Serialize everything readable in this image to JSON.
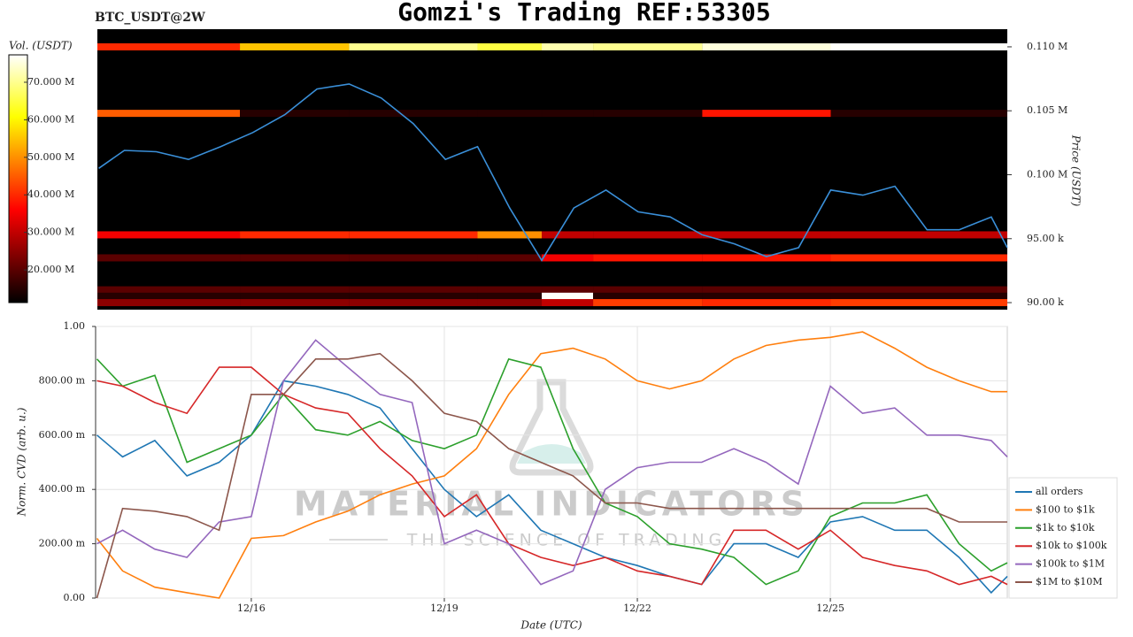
{
  "header": {
    "symbol": "BTC_USDT@2W",
    "title": "Gomzi's Trading REF:53305"
  },
  "watermark": {
    "brand": "MATERIAL INDICATORS",
    "tagline": "THE SCIENCE OF TRADING"
  },
  "chart_data": [
    {
      "type": "heatmap",
      "colorbar_label": "Vol. (USDT)",
      "y_label": "Price (USDT)",
      "xlim": [
        13.58,
        27.75
      ],
      "ylim": [
        89450,
        111380
      ],
      "yticks": [
        {
          "value": 90000,
          "label": "90.00 k"
        },
        {
          "value": 95000,
          "label": "95.00 k"
        },
        {
          "value": 100000,
          "label": "0.100 M"
        },
        {
          "value": 105000,
          "label": "0.105 M"
        },
        {
          "value": 110000,
          "label": "0.110 M"
        }
      ],
      "clim": [
        11300000,
        77300000
      ],
      "cticks": [
        {
          "value": 20000000,
          "label": "20.000 M"
        },
        {
          "value": 30000000,
          "label": "30.000 M"
        },
        {
          "value": 40000000,
          "label": "40.000 M"
        },
        {
          "value": 50000000,
          "label": "50.000 M"
        },
        {
          "value": 60000000,
          "label": "60.000 M"
        },
        {
          "value": 70000000,
          "label": "70.000 M"
        }
      ],
      "cells": {
        "x_edges": [
          13.58,
          15.8,
          17.5,
          19.5,
          20.5,
          21.3,
          23,
          25,
          27.75
        ],
        "prices": [
          110000,
          104800,
          95300,
          93500,
          91000,
          90500,
          90000
        ],
        "values": [
          [
            40000000,
            55000000,
            70000000,
            65000000,
            72000000,
            70000000,
            75000000,
            77000000
          ],
          [
            45000000,
            15000000,
            15000000,
            15000000,
            15000000,
            15000000,
            38000000,
            15000000
          ],
          [
            35000000,
            40000000,
            40000000,
            50000000,
            30000000,
            30000000,
            30000000,
            30000000
          ],
          [
            20000000,
            20000000,
            20000000,
            20000000,
            35000000,
            38000000,
            38000000,
            40000000
          ],
          [
            20000000,
            20000000,
            20000000,
            20000000,
            20000000,
            20000000,
            20000000,
            20000000
          ],
          [
            15000000,
            15000000,
            15000000,
            15000000,
            77000000,
            15000000,
            15000000,
            15000000
          ],
          [
            25000000,
            25000000,
            25000000,
            25000000,
            30000000,
            42000000,
            40000000,
            42000000
          ]
        ]
      },
      "x": [
        13.6,
        14,
        14.5,
        15,
        15.5,
        16,
        16.5,
        17,
        17.5,
        18,
        18.5,
        19,
        19.5,
        20,
        20.5,
        21,
        21.5,
        22,
        22.5,
        23,
        23.5,
        24,
        24.5,
        25,
        25.5,
        26,
        26.5,
        27,
        27.5,
        27.75
      ],
      "series": [
        {
          "color": "#3a8fd8",
          "values": [
            100500,
            101900,
            101800,
            101200,
            102200,
            103300,
            104700,
            106700,
            107100,
            106000,
            104000,
            101200,
            102200,
            97400,
            93300,
            97400,
            98800,
            97100,
            96700,
            95300,
            94600,
            93600,
            94300,
            98800,
            98400,
            99100,
            95700,
            95700,
            96700,
            94300
          ]
        }
      ]
    },
    {
      "type": "line",
      "y_label": "Norm. CVD (arb. u.)",
      "x_label": "Date (UTC)",
      "xlim": [
        13.58,
        27.75
      ],
      "ylim": [
        0,
        1
      ],
      "grid": true,
      "legend": "lower right",
      "yticks": [
        {
          "value": 0,
          "label": "0.00"
        },
        {
          "value": 0.2,
          "label": "200.00 m"
        },
        {
          "value": 0.4,
          "label": "400.00 m"
        },
        {
          "value": 0.6,
          "label": "600.00 m"
        },
        {
          "value": 0.8,
          "label": "800.00 m"
        },
        {
          "value": 1,
          "label": "1.00"
        }
      ],
      "xticks": [
        {
          "value": 16,
          "label": "12/16"
        },
        {
          "value": 19,
          "label": "12/19"
        },
        {
          "value": 22,
          "label": "12/22"
        },
        {
          "value": 25,
          "label": "12/25"
        }
      ],
      "x": [
        13.6,
        14,
        14.5,
        15,
        15.5,
        16,
        16.5,
        17,
        17.5,
        18,
        18.5,
        19,
        19.5,
        20,
        20.5,
        21,
        21.5,
        22,
        22.5,
        23,
        23.5,
        24,
        24.5,
        25,
        25.5,
        26,
        26.5,
        27,
        27.5,
        27.75
      ],
      "series": [
        {
          "name": "all orders",
          "color": "#1f77b4",
          "values": [
            0.6,
            0.52,
            0.58,
            0.45,
            0.5,
            0.6,
            0.8,
            0.78,
            0.75,
            0.7,
            0.55,
            0.4,
            0.3,
            0.38,
            0.25,
            0.2,
            0.15,
            0.12,
            0.08,
            0.05,
            0.2,
            0.2,
            0.15,
            0.28,
            0.3,
            0.25,
            0.25,
            0.15,
            0.02,
            0.08
          ]
        },
        {
          "name": "$100 to $1k",
          "color": "#ff7f0e",
          "values": [
            0.22,
            0.1,
            0.04,
            0.02,
            0,
            0.22,
            0.23,
            0.28,
            0.32,
            0.38,
            0.42,
            0.45,
            0.55,
            0.75,
            0.9,
            0.92,
            0.88,
            0.8,
            0.77,
            0.8,
            0.88,
            0.93,
            0.95,
            0.96,
            0.98,
            0.92,
            0.85,
            0.8,
            0.76,
            0.76
          ]
        },
        {
          "name": "$1k to $10k",
          "color": "#2ca02c",
          "values": [
            0.88,
            0.78,
            0.82,
            0.5,
            0.55,
            0.6,
            0.75,
            0.62,
            0.6,
            0.65,
            0.58,
            0.55,
            0.6,
            0.88,
            0.85,
            0.55,
            0.35,
            0.3,
            0.2,
            0.18,
            0.15,
            0.05,
            0.1,
            0.3,
            0.35,
            0.35,
            0.38,
            0.2,
            0.1,
            0.13
          ]
        },
        {
          "name": "$10k to $100k",
          "color": "#d62728",
          "values": [
            0.8,
            0.78,
            0.72,
            0.68,
            0.85,
            0.85,
            0.75,
            0.7,
            0.68,
            0.55,
            0.45,
            0.3,
            0.38,
            0.2,
            0.15,
            0.12,
            0.15,
            0.1,
            0.08,
            0.05,
            0.25,
            0.25,
            0.18,
            0.25,
            0.15,
            0.12,
            0.1,
            0.05,
            0.08,
            0.05
          ]
        },
        {
          "name": "$100k to $1M",
          "color": "#9467bd",
          "values": [
            0.2,
            0.25,
            0.18,
            0.15,
            0.28,
            0.3,
            0.8,
            0.95,
            0.85,
            0.75,
            0.72,
            0.2,
            0.25,
            0.2,
            0.05,
            0.1,
            0.4,
            0.48,
            0.5,
            0.5,
            0.55,
            0.5,
            0.42,
            0.78,
            0.68,
            0.7,
            0.6,
            0.6,
            0.58,
            0.52
          ]
        },
        {
          "name": "$1M to $10M",
          "color": "#8c564b",
          "values": [
            0,
            0.33,
            0.32,
            0.3,
            0.25,
            0.75,
            0.75,
            0.88,
            0.88,
            0.9,
            0.8,
            0.68,
            0.65,
            0.55,
            0.5,
            0.45,
            0.35,
            0.35,
            0.33,
            0.33,
            0.33,
            0.33,
            0.33,
            0.33,
            0.33,
            0.33,
            0.33,
            0.28,
            0.28,
            0.28
          ]
        }
      ]
    }
  ]
}
